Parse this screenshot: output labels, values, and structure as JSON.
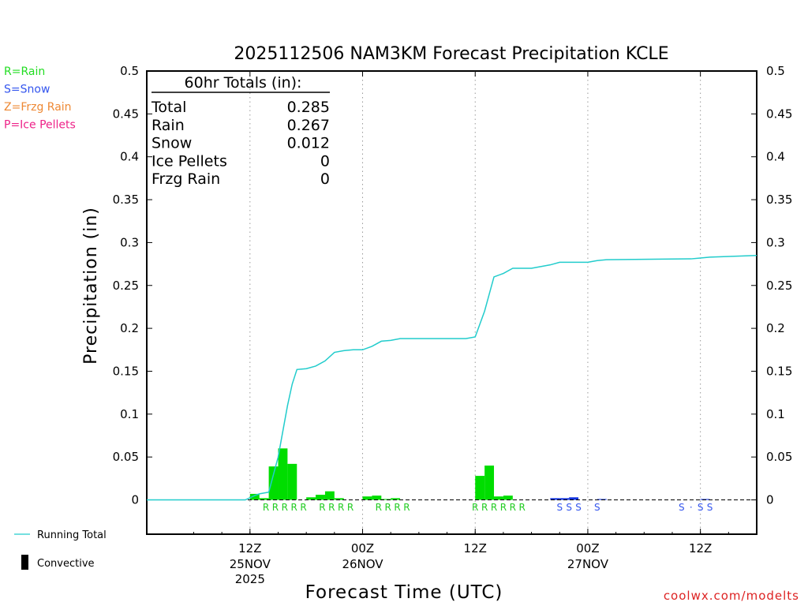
{
  "chart_data": {
    "type": "bar",
    "title": "2025112506 NAM3KM Forecast Precipitation KCLE",
    "xlabel": "Forecast Time (UTC)",
    "ylabel": "Precipitation (in)",
    "ylim": [
      -0.04,
      0.5
    ],
    "yticks": [
      "0",
      "0.05",
      "0.1",
      "0.15",
      "0.2",
      "0.25",
      "0.3",
      "0.35",
      "0.4",
      "0.45",
      "0.5"
    ],
    "x_hours_range": [
      -5,
      60
    ],
    "x_ticks": [
      {
        "hour": 6,
        "label1": "12Z",
        "label2": "25NOV",
        "label3": "2025"
      },
      {
        "hour": 18,
        "label1": "00Z",
        "label2": "26NOV",
        "label3": ""
      },
      {
        "hour": 30,
        "label1": "12Z",
        "label2": "",
        "label3": ""
      },
      {
        "hour": 42,
        "label1": "00Z",
        "label2": "27NOV",
        "label3": ""
      },
      {
        "hour": 54,
        "label1": "12Z",
        "label2": "",
        "label3": ""
      }
    ],
    "hourly_bars": [
      {
        "hour": 7,
        "value": 0.007,
        "type": "R"
      },
      {
        "hour": 8,
        "value": 0.002,
        "type": "R"
      },
      {
        "hour": 9,
        "value": 0.039,
        "type": "R"
      },
      {
        "hour": 10,
        "value": 0.06,
        "type": "R"
      },
      {
        "hour": 11,
        "value": 0.042,
        "type": "R"
      },
      {
        "hour": 13,
        "value": 0.003,
        "type": "R"
      },
      {
        "hour": 14,
        "value": 0.006,
        "type": "R"
      },
      {
        "hour": 15,
        "value": 0.01,
        "type": "R"
      },
      {
        "hour": 16,
        "value": 0.002,
        "type": "R"
      },
      {
        "hour": 19,
        "value": 0.004,
        "type": "R"
      },
      {
        "hour": 20,
        "value": 0.005,
        "type": "R"
      },
      {
        "hour": 21,
        "value": 0.001,
        "type": "R"
      },
      {
        "hour": 22,
        "value": 0.002,
        "type": "R"
      },
      {
        "hour": 31,
        "value": 0.028,
        "type": "R"
      },
      {
        "hour": 32,
        "value": 0.04,
        "type": "R"
      },
      {
        "hour": 33,
        "value": 0.004,
        "type": "R"
      },
      {
        "hour": 34,
        "value": 0.005,
        "type": "R"
      },
      {
        "hour": 39,
        "value": 0.002,
        "type": "S"
      },
      {
        "hour": 40,
        "value": 0.002,
        "type": "S"
      },
      {
        "hour": 41,
        "value": 0.003,
        "type": "S"
      },
      {
        "hour": 44,
        "value": 0.001,
        "type": "S"
      },
      {
        "hour": 55,
        "value": 0.001,
        "type": "S"
      }
    ],
    "running_total": [
      [
        -5,
        0
      ],
      [
        5.5,
        0
      ],
      [
        6.5,
        0.005
      ],
      [
        7,
        0.007
      ],
      [
        8,
        0.009
      ],
      [
        9,
        0.05
      ],
      [
        10,
        0.11
      ],
      [
        10.5,
        0.135
      ],
      [
        11,
        0.152
      ],
      [
        12,
        0.153
      ],
      [
        13,
        0.156
      ],
      [
        14,
        0.162
      ],
      [
        15,
        0.172
      ],
      [
        16,
        0.174
      ],
      [
        17,
        0.175
      ],
      [
        18,
        0.175
      ],
      [
        19,
        0.179
      ],
      [
        20,
        0.185
      ],
      [
        21,
        0.186
      ],
      [
        22,
        0.188
      ],
      [
        23,
        0.188
      ],
      [
        29,
        0.188
      ],
      [
        30,
        0.19
      ],
      [
        31,
        0.22
      ],
      [
        32,
        0.26
      ],
      [
        33,
        0.264
      ],
      [
        34,
        0.27
      ],
      [
        36,
        0.27
      ],
      [
        38,
        0.274
      ],
      [
        39,
        0.277
      ],
      [
        42,
        0.277
      ],
      [
        43,
        0.279
      ],
      [
        44,
        0.28
      ],
      [
        53,
        0.281
      ],
      [
        54,
        0.282
      ],
      [
        55,
        0.283
      ],
      [
        60,
        0.285
      ]
    ],
    "ptype_labels": [
      {
        "hour": 7.7,
        "text": "R",
        "type": "R"
      },
      {
        "hour": 8.7,
        "text": "R",
        "type": "R"
      },
      {
        "hour": 9.7,
        "text": "R",
        "type": "R"
      },
      {
        "hour": 10.7,
        "text": "R",
        "type": "R"
      },
      {
        "hour": 11.7,
        "text": "R",
        "type": "R"
      },
      {
        "hour": 13.7,
        "text": "R",
        "type": "R"
      },
      {
        "hour": 14.7,
        "text": "R",
        "type": "R"
      },
      {
        "hour": 15.7,
        "text": "R",
        "type": "R"
      },
      {
        "hour": 16.7,
        "text": "R",
        "type": "R"
      },
      {
        "hour": 19.7,
        "text": "R",
        "type": "R"
      },
      {
        "hour": 20.7,
        "text": "R",
        "type": "R"
      },
      {
        "hour": 21.7,
        "text": "R",
        "type": "R"
      },
      {
        "hour": 22.7,
        "text": "R",
        "type": "R"
      },
      {
        "hour": 30.0,
        "text": "R",
        "type": "R"
      },
      {
        "hour": 31.0,
        "text": "R",
        "type": "R"
      },
      {
        "hour": 32.0,
        "text": "R",
        "type": "R"
      },
      {
        "hour": 33.0,
        "text": "R",
        "type": "R"
      },
      {
        "hour": 34.0,
        "text": "R",
        "type": "R"
      },
      {
        "hour": 35.0,
        "text": "R",
        "type": "R"
      },
      {
        "hour": 39.0,
        "text": "S",
        "type": "S"
      },
      {
        "hour": 40.0,
        "text": "S",
        "type": "S"
      },
      {
        "hour": 41.0,
        "text": "S",
        "type": "S"
      },
      {
        "hour": 43.0,
        "text": "S",
        "type": "S"
      },
      {
        "hour": 52.0,
        "text": "S",
        "type": "S"
      },
      {
        "hour": 53.0,
        "text": "·",
        "type": "S"
      },
      {
        "hour": 54.0,
        "text": "S",
        "type": "S"
      },
      {
        "hour": 55.0,
        "text": "S",
        "type": "S"
      }
    ],
    "totals_box": {
      "header": "60hr Totals (in):",
      "rows": [
        {
          "label": "Total",
          "value": "0.285"
        },
        {
          "label": "Rain",
          "value": "0.267"
        },
        {
          "label": "Snow",
          "value": "0.012"
        },
        {
          "label": "Ice Pellets",
          "value": "0"
        },
        {
          "label": "Frzg Rain",
          "value": "0"
        }
      ]
    },
    "type_legend": [
      {
        "text": "R=Rain",
        "color": "#22dd22"
      },
      {
        "text": "S=Snow",
        "color": "#3355ee"
      },
      {
        "text": "Z=Frzg Rain",
        "color": "#ee8833"
      },
      {
        "text": "P=Ice Pellets",
        "color": "#ee2288"
      }
    ],
    "series_legend": {
      "running_total": "Running Total",
      "convective": "Convective"
    },
    "credit": "coolwx.com/modelts"
  },
  "colors": {
    "rain": "#00dd00",
    "snow": "#1133dd",
    "running_total": "#22cccc",
    "rain_label": "#22cc22",
    "snow_label": "#3355ee",
    "axis": "#000000",
    "grid": "#999999",
    "credit": "#dd2222"
  }
}
